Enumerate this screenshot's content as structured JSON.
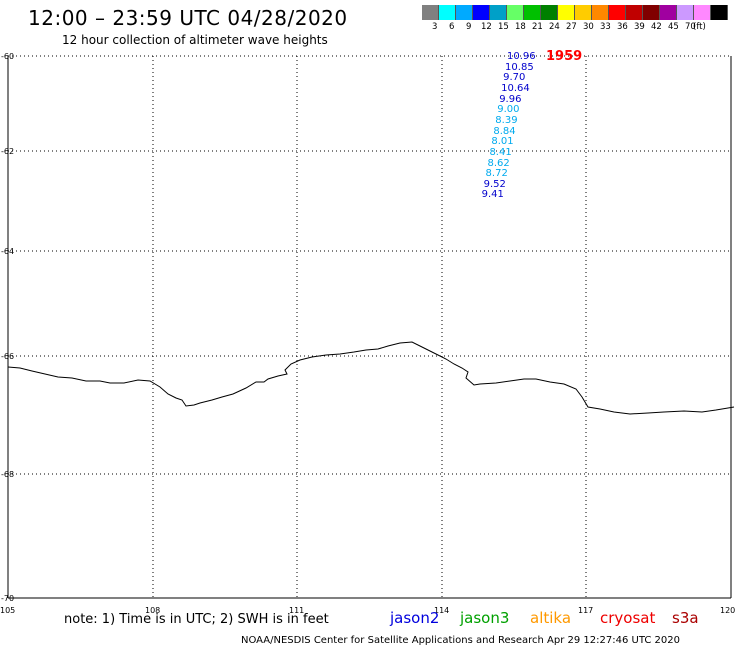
{
  "header": {
    "title": "12:00 – 23:59 UTC 04/28/2020",
    "subtitle": "12 hour collection of altimeter wave heights"
  },
  "legend": {
    "colors": [
      "#808080",
      "#00ffff",
      "#00aaff",
      "#0000ff",
      "#00a0c8",
      "#66ff66",
      "#00c000",
      "#008000",
      "#ffff00",
      "#ffcc00",
      "#ff8800",
      "#ff0000",
      "#c00000",
      "#800000",
      "#a000a0",
      "#cc99ff",
      "#ff88ff",
      "#000000"
    ],
    "labels": [
      "3",
      "6",
      "9",
      "12",
      "15",
      "18",
      "21",
      "24",
      "27",
      "30",
      "33",
      "36",
      "39",
      "42",
      "45",
      "70"
    ],
    "unit": "(ft)"
  },
  "axes": {
    "lat_labels": [
      "-60",
      "-62",
      "-64",
      "-66",
      "-68",
      "-70"
    ],
    "lon_labels": [
      "105",
      "108",
      "111",
      "114",
      "117",
      "120"
    ]
  },
  "track": {
    "time_label": "1959",
    "time_color": "#ff0000",
    "values": [
      {
        "v": "10.96",
        "c": "#0000cc"
      },
      {
        "v": "10.85",
        "c": "#0000cc"
      },
      {
        "v": "9.70",
        "c": "#0000cc"
      },
      {
        "v": "10.64",
        "c": "#0000cc"
      },
      {
        "v": "9.96",
        "c": "#0000cc"
      },
      {
        "v": "9.00",
        "c": "#00aaee"
      },
      {
        "v": "8.39",
        "c": "#00aaee"
      },
      {
        "v": "8.84",
        "c": "#00aaee"
      },
      {
        "v": "8.01",
        "c": "#00aaee"
      },
      {
        "v": "8.41",
        "c": "#00aaee"
      },
      {
        "v": "8.62",
        "c": "#00aaee"
      },
      {
        "v": "8.72",
        "c": "#00aaee"
      },
      {
        "v": "9.52",
        "c": "#0000cc"
      },
      {
        "v": "9.41",
        "c": "#0000cc"
      }
    ]
  },
  "footer": {
    "note": "note: 1) Time is in UTC; 2) SWH is in feet",
    "credit": "NOAA/NESDIS Center for Satellite Applications and Research    Apr 29 12:27:46 UTC 2020"
  },
  "satellites": [
    {
      "name": "jason2",
      "color": "#0000dd"
    },
    {
      "name": "jason3",
      "color": "#00a000"
    },
    {
      "name": "altika",
      "color": "#ff9900"
    },
    {
      "name": "cryosat",
      "color": "#ee0000"
    },
    {
      "name": "s3a",
      "color": "#aa0000"
    }
  ]
}
